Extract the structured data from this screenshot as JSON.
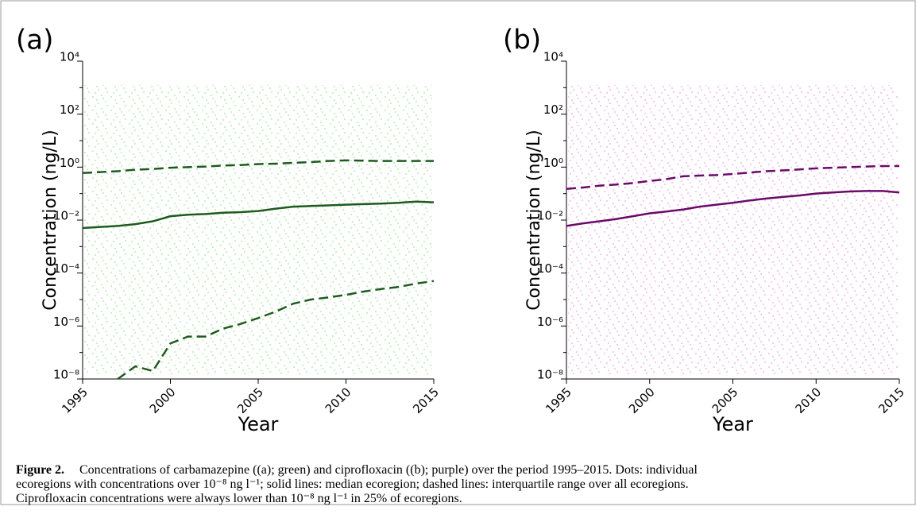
{
  "chart_data": [
    {
      "type": "line",
      "panel_label": "(a)",
      "xlabel": "Year",
      "ylabel": "Concentration (ng/L)",
      "ylog": true,
      "dot_color": "#b8ecb2",
      "x": [
        1995,
        1996,
        1997,
        1998,
        1999,
        2000,
        2001,
        2002,
        2003,
        2004,
        2005,
        2006,
        2007,
        2008,
        2009,
        2010,
        2011,
        2012,
        2013,
        2014,
        2015
      ],
      "xlim": [
        1995,
        2015
      ],
      "xticks": [
        1995,
        2000,
        2005,
        2010,
        2015
      ],
      "ylim": [
        1e-08,
        10000
      ],
      "yticks": [
        {
          "value": 1e-08,
          "label": "10⁻⁸"
        },
        {
          "value": 1e-06,
          "label": "10⁻⁶"
        },
        {
          "value": 0.0001,
          "label": "10⁻⁴"
        },
        {
          "value": 0.01,
          "label": "10⁻²"
        },
        {
          "value": 1,
          "label": "10⁰"
        },
        {
          "value": 100,
          "label": "10²"
        },
        {
          "value": 10000,
          "label": "10⁴"
        }
      ],
      "yminor": [
        1e-07,
        1e-05,
        0.001,
        0.1,
        10,
        1000
      ],
      "series": [
        {
          "color": "#1e5a1e",
          "dashed": true,
          "values": [
            0.6,
            0.65,
            0.7,
            0.8,
            0.85,
            0.95,
            1.0,
            1.05,
            1.15,
            1.2,
            1.3,
            1.35,
            1.45,
            1.55,
            1.7,
            1.8,
            1.75,
            1.7,
            1.7,
            1.7,
            1.7
          ]
        },
        {
          "color": "#1e5a1e",
          "dashed": false,
          "values": [
            0.005,
            0.0055,
            0.006,
            0.007,
            0.009,
            0.014,
            0.016,
            0.017,
            0.019,
            0.02,
            0.022,
            0.027,
            0.032,
            0.034,
            0.036,
            0.038,
            0.04,
            0.042,
            0.045,
            0.05,
            0.047
          ]
        },
        {
          "color": "#1e5a1e",
          "dashed": true,
          "values": [
            null,
            null,
            1e-08,
            3e-08,
            2e-08,
            2.2e-07,
            4e-07,
            4e-07,
            8e-07,
            1.2e-06,
            2e-06,
            3.5e-06,
            7e-06,
            1e-05,
            1.2e-05,
            1.5e-05,
            2e-05,
            2.5e-05,
            3e-05,
            4e-05,
            5e-05
          ]
        }
      ]
    },
    {
      "type": "line",
      "panel_label": "(b)",
      "xlabel": "Year",
      "ylabel": "Concentration (ng/L)",
      "ylog": true,
      "dot_color": "#f4b8f0",
      "x": [
        1995,
        1996,
        1997,
        1998,
        1999,
        2000,
        2001,
        2002,
        2003,
        2004,
        2005,
        2006,
        2007,
        2008,
        2009,
        2010,
        2011,
        2012,
        2013,
        2014,
        2015
      ],
      "xlim": [
        1995,
        2015
      ],
      "xticks": [
        1995,
        2000,
        2005,
        2010,
        2015
      ],
      "ylim": [
        1e-08,
        10000
      ],
      "yticks": [
        {
          "value": 1e-08,
          "label": "10⁻⁸"
        },
        {
          "value": 1e-06,
          "label": "10⁻⁶"
        },
        {
          "value": 0.0001,
          "label": "10⁻⁴"
        },
        {
          "value": 0.01,
          "label": "10⁻²"
        },
        {
          "value": 1,
          "label": "10⁰"
        },
        {
          "value": 100,
          "label": "10²"
        },
        {
          "value": 10000,
          "label": "10⁴"
        }
      ],
      "yminor": [
        1e-07,
        1e-05,
        0.001,
        0.1,
        10,
        1000
      ],
      "series": [
        {
          "color": "#6a0a6a",
          "dashed": true,
          "values": [
            0.15,
            0.17,
            0.2,
            0.22,
            0.25,
            0.3,
            0.35,
            0.45,
            0.48,
            0.5,
            0.55,
            0.62,
            0.7,
            0.75,
            0.82,
            0.9,
            0.95,
            1.0,
            1.05,
            1.1,
            1.1
          ]
        },
        {
          "color": "#6a0a6a",
          "dashed": false,
          "values": [
            0.006,
            0.0075,
            0.009,
            0.011,
            0.014,
            0.018,
            0.021,
            0.025,
            0.032,
            0.038,
            0.045,
            0.055,
            0.065,
            0.075,
            0.085,
            0.1,
            0.11,
            0.12,
            0.125,
            0.125,
            0.11
          ]
        }
      ]
    }
  ],
  "caption": {
    "label": "Figure 2.",
    "lines": [
      "Concentrations of carbamazepine ((a); green) and ciprofloxacin ((b); purple) over the period 1995–2015. Dots: individual",
      "ecoregions with concentrations over 10⁻⁸ ng l⁻¹; solid lines: median ecoregion; dashed lines: interquartile range over all ecoregions.",
      "Ciprofloxacin concentrations were always lower than 10⁻⁸ ng l⁻¹ in 25% of ecoregions."
    ]
  }
}
